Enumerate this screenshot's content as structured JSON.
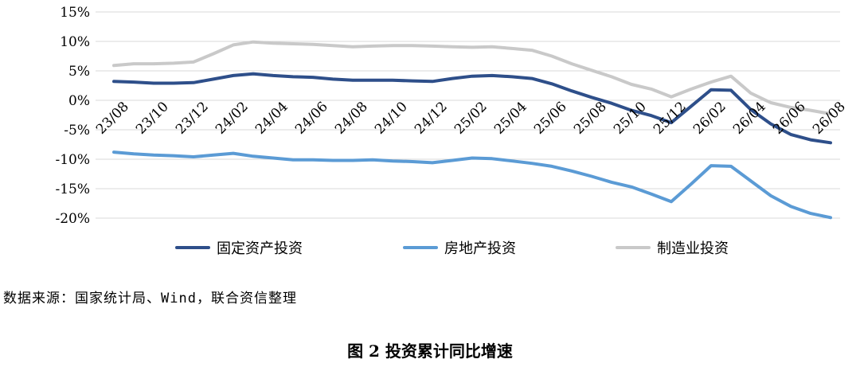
{
  "source_text": "数据来源：国家统计局、Wind，联合资信整理",
  "figure_title": "图 2   投资累计同比增速",
  "chart_data": {
    "type": "line",
    "title": "",
    "xlabel": "",
    "ylabel": "",
    "ylim": [
      -20,
      15
    ],
    "y_ticks": [
      15,
      10,
      5,
      0,
      -5,
      -10,
      -15,
      -20
    ],
    "y_tick_labels": [
      "15%",
      "10%",
      "5%",
      "0%",
      "-5%",
      "-10%",
      "-15%",
      "-20%"
    ],
    "grid": "horizontal",
    "legend_position": "bottom",
    "x": [
      "23/08",
      "23/09",
      "23/10",
      "23/11",
      "23/12",
      "24/01",
      "24/02",
      "24/03",
      "24/04",
      "24/05",
      "24/06",
      "24/07",
      "24/08",
      "24/09",
      "24/10",
      "24/11",
      "24/12",
      "25/01",
      "25/02",
      "25/03",
      "25/04",
      "25/05",
      "25/06",
      "25/07",
      "25/08",
      "25/09",
      "25/10",
      "25/11",
      "25/12",
      "26/01",
      "26/02",
      "26/03",
      "26/04",
      "26/05",
      "26/06",
      "26/07",
      "26/08"
    ],
    "x_tick_labels": [
      "23/08",
      "23/10",
      "23/12",
      "24/02",
      "24/04",
      "24/06",
      "24/08",
      "24/10",
      "24/12",
      "25/02",
      "25/04",
      "25/06",
      "25/08",
      "25/10",
      "25/12",
      "26/02",
      "26/04",
      "26/06",
      "26/08"
    ],
    "series": [
      {
        "name": "固定资产投资",
        "color": "#2E4F8A",
        "values": [
          3.2,
          3.1,
          2.9,
          2.9,
          3.0,
          3.6,
          4.2,
          4.5,
          4.2,
          4.0,
          3.9,
          3.6,
          3.4,
          3.4,
          3.4,
          3.3,
          3.2,
          3.7,
          4.1,
          4.2,
          4.0,
          3.7,
          2.8,
          1.6,
          0.5,
          -0.5,
          -1.7,
          -2.6,
          -3.8,
          -1.0,
          1.8,
          1.7,
          -1.6,
          -4.0,
          -5.8,
          -6.7,
          -7.2
        ]
      },
      {
        "name": "房地产投资",
        "color": "#5B9BD5",
        "values": [
          -8.8,
          -9.1,
          -9.3,
          -9.4,
          -9.6,
          -9.3,
          -9.0,
          -9.5,
          -9.8,
          -10.1,
          -10.1,
          -10.2,
          -10.2,
          -10.1,
          -10.3,
          -10.4,
          -10.6,
          -10.2,
          -9.8,
          -9.9,
          -10.3,
          -10.7,
          -11.2,
          -12.0,
          -12.9,
          -13.9,
          -14.7,
          -15.9,
          -17.2,
          -14.2,
          -11.1,
          -11.2,
          -13.7,
          -16.2,
          -18.0,
          -19.2,
          -19.9
        ]
      },
      {
        "name": "制造业投资",
        "color": "#C9C9C9",
        "values": [
          5.9,
          6.2,
          6.2,
          6.3,
          6.5,
          7.9,
          9.4,
          9.9,
          9.7,
          9.6,
          9.5,
          9.3,
          9.1,
          9.2,
          9.3,
          9.3,
          9.2,
          9.1,
          9.0,
          9.1,
          8.8,
          8.5,
          7.5,
          6.2,
          5.1,
          4.0,
          2.7,
          1.9,
          0.6,
          1.9,
          3.1,
          4.1,
          1.2,
          -0.4,
          -1.2,
          -1.7,
          -2.3
        ]
      }
    ]
  }
}
